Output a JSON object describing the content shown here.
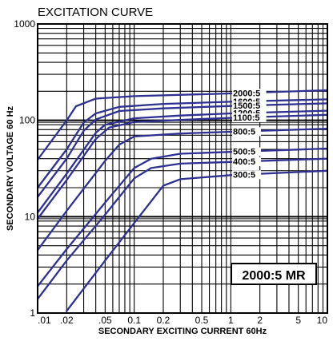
{
  "chart_data": {
    "type": "line",
    "title": "EXCITATION CURVE",
    "xlabel": "SECONDARY EXCITING CURRENT 60Hz",
    "ylabel": "SECONDARY VOLTAGE 60 Hz",
    "x_scale": "log",
    "y_scale": "log",
    "xlim": [
      0.01,
      10
    ],
    "ylim": [
      1,
      1000
    ],
    "x_ticks": [
      {
        "value": 0.01,
        "label": ".01"
      },
      {
        "value": 0.02,
        "label": ".02"
      },
      {
        "value": 0.05,
        "label": ".05"
      },
      {
        "value": 0.1,
        "label": "0.1"
      },
      {
        "value": 0.2,
        "label": "0.2"
      },
      {
        "value": 0.5,
        "label": "0.5"
      },
      {
        "value": 1,
        "label": "1"
      },
      {
        "value": 2,
        "label": "2"
      },
      {
        "value": 5,
        "label": "5"
      },
      {
        "value": 10,
        "label": "10"
      }
    ],
    "y_ticks": [
      {
        "value": 1,
        "label": "1"
      },
      {
        "value": 10,
        "label": "10"
      },
      {
        "value": 100,
        "label": "100"
      },
      {
        "value": 1000,
        "label": "1000"
      }
    ],
    "grid": true,
    "annotation": "2000:5 MR",
    "line_color": "#2e3192",
    "series": [
      {
        "name": "2000:5",
        "points": [
          [
            0.01,
            39
          ],
          [
            0.02,
            100
          ],
          [
            0.025,
            140
          ],
          [
            0.04,
            168
          ],
          [
            0.1,
            178
          ],
          [
            1,
            190
          ],
          [
            10,
            205
          ]
        ]
      },
      {
        "name": "1600:5",
        "points": [
          [
            0.01,
            20
          ],
          [
            0.02,
            50
          ],
          [
            0.03,
            95
          ],
          [
            0.04,
            118
          ],
          [
            0.07,
            138
          ],
          [
            0.2,
            148
          ],
          [
            1,
            156
          ],
          [
            10,
            165
          ]
        ]
      },
      {
        "name": "1500:5",
        "points": [
          [
            0.01,
            16
          ],
          [
            0.02,
            40
          ],
          [
            0.03,
            78
          ],
          [
            0.04,
            102
          ],
          [
            0.07,
            125
          ],
          [
            0.2,
            133
          ],
          [
            1,
            141
          ],
          [
            10,
            150
          ]
        ]
      },
      {
        "name": "1200:5",
        "points": [
          [
            0.01,
            11
          ],
          [
            0.02,
            28
          ],
          [
            0.04,
            74
          ],
          [
            0.05,
            90
          ],
          [
            0.1,
            105
          ],
          [
            0.3,
            112
          ],
          [
            1,
            118
          ],
          [
            10,
            126
          ]
        ]
      },
      {
        "name": "1100:5",
        "points": [
          [
            0.01,
            9.5
          ],
          [
            0.02,
            24
          ],
          [
            0.04,
            64
          ],
          [
            0.055,
            84
          ],
          [
            0.1,
            96
          ],
          [
            0.3,
            101
          ],
          [
            1,
            106
          ],
          [
            10,
            114
          ]
        ]
      },
      {
        "name": "800:5",
        "points": [
          [
            0.01,
            4.5
          ],
          [
            0.02,
            11.5
          ],
          [
            0.05,
            38
          ],
          [
            0.07,
            56
          ],
          [
            0.1,
            68
          ],
          [
            0.3,
            73
          ],
          [
            1,
            76
          ],
          [
            10,
            82
          ]
        ]
      },
      {
        "name": "500:5",
        "points": [
          [
            0.01,
            1.9
          ],
          [
            0.02,
            4.6
          ],
          [
            0.05,
            14
          ],
          [
            0.1,
            32
          ],
          [
            0.15,
            40
          ],
          [
            0.3,
            45
          ],
          [
            1,
            47
          ],
          [
            10,
            51
          ]
        ]
      },
      {
        "name": "400:5",
        "points": [
          [
            0.01,
            1.4
          ],
          [
            0.02,
            3.5
          ],
          [
            0.05,
            10.5
          ],
          [
            0.1,
            25
          ],
          [
            0.15,
            32
          ],
          [
            0.3,
            35.5
          ],
          [
            1,
            37
          ],
          [
            10,
            40
          ]
        ]
      },
      {
        "name": "300:5",
        "points": [
          [
            0.02,
            1.05
          ],
          [
            0.05,
            3.5
          ],
          [
            0.1,
            8.6
          ],
          [
            0.2,
            21
          ],
          [
            0.3,
            24.5
          ],
          [
            1,
            27
          ],
          [
            10,
            30
          ]
        ]
      }
    ]
  }
}
